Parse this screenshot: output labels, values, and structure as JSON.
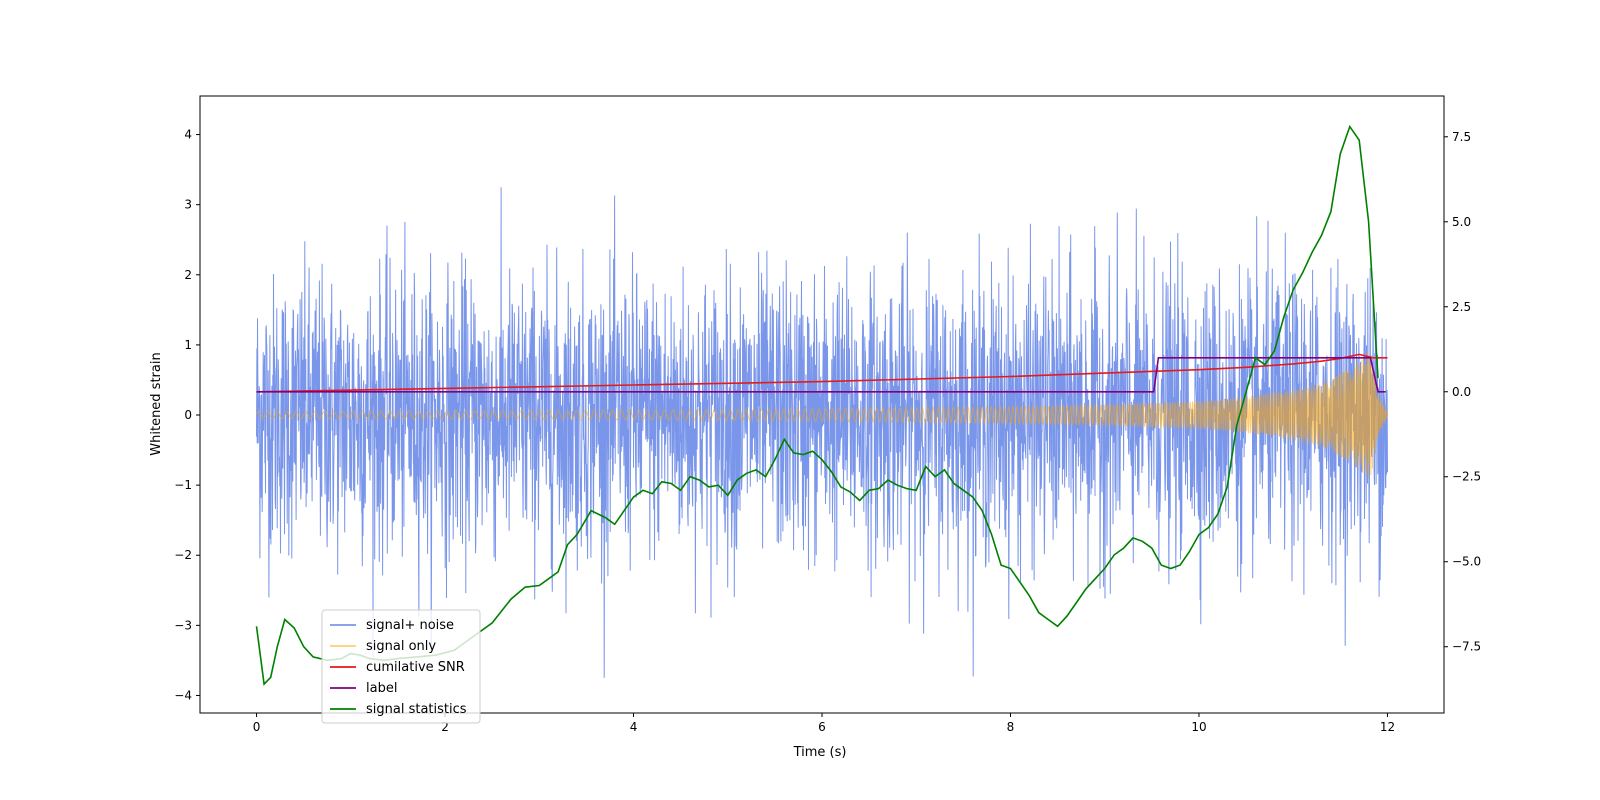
{
  "chart_data": {
    "type": "line",
    "title": "",
    "xlabel": "Time (s)",
    "ylabel": "Whitened strain",
    "y2label": "",
    "xlim": [
      -0.6,
      12.6
    ],
    "ylim": [
      -4.25,
      4.55
    ],
    "y2lim": [
      -9.45,
      8.7
    ],
    "xticks": [
      "0",
      "2",
      "4",
      "6",
      "8",
      "10",
      "12"
    ],
    "xtick_values": [
      0,
      2,
      4,
      6,
      8,
      10,
      12
    ],
    "yticks": [
      "−4",
      "−3",
      "−2",
      "−1",
      "0",
      "1",
      "2",
      "3",
      "4"
    ],
    "ytick_values": [
      -4,
      -3,
      -2,
      -1,
      0,
      1,
      2,
      3,
      4
    ],
    "y2ticks": [
      "−7.5",
      "−5.0",
      "−2.5",
      "0.0",
      "2.5",
      "5.0",
      "7.5"
    ],
    "y2tick_values": [
      -7.5,
      -5.0,
      -2.5,
      0.0,
      2.5,
      5.0,
      7.5
    ],
    "grid": false,
    "legend_position": "lower-left",
    "series": [
      {
        "name": "signal+ noise",
        "axis": "left",
        "color": "#4169e1",
        "kind": "noise",
        "x_range": [
          0,
          12
        ],
        "typical_amplitude": [
          -1.6,
          1.6
        ],
        "extreme_max": 4.18,
        "extreme_min": -3.75
      },
      {
        "name": "signal only",
        "axis": "left",
        "color": "#ffa500",
        "kind": "chirp",
        "x_range": [
          0,
          12
        ],
        "envelope_x": [
          0,
          2,
          4,
          6,
          8,
          9,
          10,
          10.5,
          11,
          11.3,
          11.5,
          11.65,
          11.75,
          11.82,
          11.9,
          12
        ],
        "envelope_amp": [
          0.05,
          0.06,
          0.07,
          0.09,
          0.12,
          0.15,
          0.2,
          0.26,
          0.36,
          0.46,
          0.58,
          0.72,
          0.85,
          0.95,
          0.3,
          0.03
        ]
      },
      {
        "name": "cumilative SNR",
        "axis": "right",
        "color": "#e41a1c",
        "x": [
          0,
          2,
          4,
          6,
          8,
          9,
          10,
          10.5,
          11,
          11.3,
          11.5,
          11.7,
          11.85,
          12
        ],
        "y": [
          0,
          0.1,
          0.2,
          0.3,
          0.45,
          0.55,
          0.65,
          0.72,
          0.82,
          0.9,
          0.98,
          1.1,
          1.0,
          1.0
        ]
      },
      {
        "name": "label",
        "axis": "right",
        "color": "#800080",
        "x": [
          0,
          9.52,
          9.57,
          11.82,
          11.9,
          11.98
        ],
        "y": [
          0,
          0,
          1.0,
          1.0,
          0,
          0
        ]
      },
      {
        "name": "signal statistics",
        "axis": "right",
        "color": "#008000",
        "x": [
          0,
          0.08,
          0.15,
          0.22,
          0.3,
          0.4,
          0.5,
          0.6,
          0.75,
          0.9,
          1.0,
          1.1,
          1.2,
          1.35,
          1.5,
          1.7,
          1.9,
          2.1,
          2.3,
          2.5,
          2.7,
          2.85,
          3.0,
          3.1,
          3.2,
          3.3,
          3.4,
          3.55,
          3.7,
          3.8,
          3.9,
          4.0,
          4.1,
          4.2,
          4.3,
          4.4,
          4.5,
          4.6,
          4.7,
          4.8,
          4.9,
          5.0,
          5.1,
          5.2,
          5.3,
          5.4,
          5.5,
          5.6,
          5.7,
          5.8,
          5.9,
          6.0,
          6.1,
          6.2,
          6.3,
          6.4,
          6.5,
          6.6,
          6.7,
          6.8,
          6.9,
          7.0,
          7.1,
          7.2,
          7.3,
          7.4,
          7.5,
          7.6,
          7.7,
          7.8,
          7.9,
          8.0,
          8.1,
          8.2,
          8.3,
          8.4,
          8.5,
          8.6,
          8.7,
          8.8,
          8.9,
          9.0,
          9.1,
          9.2,
          9.3,
          9.4,
          9.5,
          9.6,
          9.7,
          9.8,
          9.9,
          10.0,
          10.1,
          10.2,
          10.3,
          10.4,
          10.5,
          10.6,
          10.7,
          10.8,
          10.9,
          11.0,
          11.1,
          11.2,
          11.3,
          11.4,
          11.5,
          11.6,
          11.7,
          11.8,
          11.9
        ],
        "y": [
          -6.9,
          -8.6,
          -8.4,
          -7.5,
          -6.7,
          -6.95,
          -7.5,
          -7.8,
          -7.9,
          -7.85,
          -7.7,
          -7.75,
          -7.85,
          -7.9,
          -7.85,
          -7.8,
          -7.75,
          -7.6,
          -7.2,
          -6.8,
          -6.1,
          -5.75,
          -5.7,
          -5.5,
          -5.3,
          -4.5,
          -4.2,
          -3.5,
          -3.7,
          -3.9,
          -3.5,
          -3.1,
          -2.9,
          -3.0,
          -2.65,
          -2.7,
          -2.9,
          -2.5,
          -2.6,
          -2.8,
          -2.75,
          -3.05,
          -2.6,
          -2.4,
          -2.3,
          -2.5,
          -2.0,
          -1.4,
          -1.8,
          -1.85,
          -1.75,
          -2.0,
          -2.35,
          -2.8,
          -2.95,
          -3.2,
          -2.9,
          -2.85,
          -2.6,
          -2.75,
          -2.85,
          -2.9,
          -2.2,
          -2.5,
          -2.3,
          -2.7,
          -2.9,
          -3.1,
          -3.5,
          -4.2,
          -5.1,
          -5.2,
          -5.6,
          -6.0,
          -6.5,
          -6.7,
          -6.9,
          -6.6,
          -6.2,
          -5.8,
          -5.5,
          -5.2,
          -4.8,
          -4.6,
          -4.3,
          -4.4,
          -4.6,
          -5.1,
          -5.2,
          -5.1,
          -4.7,
          -4.2,
          -4.0,
          -3.6,
          -2.8,
          -1.0,
          0.0,
          1.0,
          0.8,
          1.2,
          2.2,
          3.0,
          3.5,
          4.1,
          4.6,
          5.3,
          7.0,
          7.8,
          7.4,
          5.0,
          0.4
        ]
      }
    ]
  }
}
